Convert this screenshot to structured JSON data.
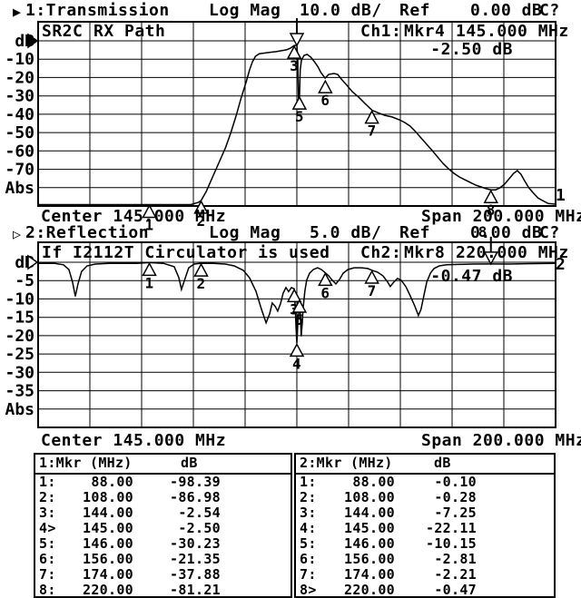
{
  "colors": {
    "fg": "#000000",
    "bg": "#ffffff"
  },
  "header1": {
    "prefix": "▶",
    "title": "1:Transmission",
    "mag_label": "Log Mag",
    "scale": "10.0 dB/",
    "ref_label": "Ref",
    "ref_value": "0.00 dB",
    "cal": "C?"
  },
  "header2": {
    "prefix": "▷",
    "title": "2:Reflection",
    "mag_label": "Log Mag",
    "scale": "5.0 dB/",
    "ref_label": "Ref",
    "ref_value": "0.00 dB",
    "cal": "C?"
  },
  "chart1_texts": {
    "note_left": "SR2C",
    "note_right": "RX Path",
    "ch": "Ch1:",
    "mkr": "Mkr4",
    "mkr_freq": "145.000 MHz",
    "mkr_value": "-2.50 dB",
    "footer_center": "Center 145.000 MHz",
    "footer_span": "Span 200.000 MHz",
    "trace_no": "1"
  },
  "chart2_texts": {
    "note": "If I2112T Circulator is used",
    "ch": "Ch2:",
    "mkr": "Mkr8",
    "mkr_freq": "220.000 MHz",
    "mkr_value": "-0.47 dB",
    "footer_center": "Center 145.000 MHz",
    "footer_span": "Span 200.000 MHz",
    "trace_no": "2"
  },
  "chart_data": [
    {
      "type": "line",
      "name": "Transmission",
      "channel": "Ch1",
      "note": "SR2C RX Path",
      "x_unit": "MHz",
      "center_mhz": 145,
      "span_mhz": 200,
      "x_start_mhz": 45,
      "x_stop_mhz": 245,
      "scale_db_per_div": 10,
      "ref_db": 0,
      "ylim": [
        -90,
        0
      ],
      "y_ticks": [
        "dB",
        "-10",
        "-20",
        "-30",
        "-40",
        "-50",
        "-60",
        "-70",
        "Abs"
      ],
      "active_marker": 4,
      "show_active_label": false,
      "ref_marker_filled": true,
      "markers": [
        {
          "n": 1,
          "mhz": 88,
          "db": -98.39
        },
        {
          "n": 2,
          "mhz": 108,
          "db": -86.98
        },
        {
          "n": 3,
          "mhz": 144,
          "db": -2.54
        },
        {
          "n": 4,
          "mhz": 145,
          "db": -2.5
        },
        {
          "n": 5,
          "mhz": 146,
          "db": -30.23
        },
        {
          "n": 6,
          "mhz": 156,
          "db": -21.35
        },
        {
          "n": 7,
          "mhz": 174,
          "db": -37.88
        },
        {
          "n": 8,
          "mhz": 220,
          "db": -81.21
        }
      ],
      "trace": [
        [
          45,
          -89.5
        ],
        [
          100,
          -89.5
        ],
        [
          104,
          -89.5
        ],
        [
          107,
          -88
        ],
        [
          108,
          -86.98
        ],
        [
          110,
          -82
        ],
        [
          112.5,
          -74
        ],
        [
          115,
          -66
        ],
        [
          117.5,
          -58
        ],
        [
          119.5,
          -50
        ],
        [
          121.5,
          -41
        ],
        [
          123.5,
          -31
        ],
        [
          125.5,
          -22
        ],
        [
          126.7,
          -16
        ],
        [
          127.8,
          -11.5
        ],
        [
          129,
          -8.4
        ],
        [
          130.5,
          -7
        ],
        [
          134,
          -6.4
        ],
        [
          137,
          -5.9
        ],
        [
          141,
          -4.9
        ],
        [
          142.5,
          -4
        ],
        [
          144,
          -2.54
        ],
        [
          145,
          -2.5
        ],
        [
          145.3,
          -8.4
        ],
        [
          145.5,
          -21
        ],
        [
          145.7,
          -37.6
        ],
        [
          146,
          -30.23
        ],
        [
          146.3,
          -15.8
        ],
        [
          146.8,
          -10.4
        ],
        [
          147.8,
          -7.9
        ],
        [
          149,
          -7.4
        ],
        [
          150.4,
          -8.9
        ],
        [
          151.8,
          -11.4
        ],
        [
          153.2,
          -14.3
        ],
        [
          154.3,
          -17.3
        ],
        [
          155.9,
          -20.3
        ],
        [
          157.3,
          -18.3
        ],
        [
          159.4,
          -17.8
        ],
        [
          160.8,
          -18.3
        ],
        [
          162.2,
          -20.8
        ],
        [
          164.3,
          -24.2
        ],
        [
          166.4,
          -27.7
        ],
        [
          168.9,
          -30.7
        ],
        [
          171.3,
          -34.1
        ],
        [
          174.1,
          -37.88
        ],
        [
          176.2,
          -39.1
        ],
        [
          179,
          -40.6
        ],
        [
          181.8,
          -41.5
        ],
        [
          184.6,
          -43
        ],
        [
          186.7,
          -44.5
        ],
        [
          188.8,
          -46.5
        ],
        [
          190.9,
          -49.5
        ],
        [
          193,
          -52.9
        ],
        [
          195.2,
          -56.4
        ],
        [
          197.3,
          -59.8
        ],
        [
          199.4,
          -63.3
        ],
        [
          201.5,
          -66.8
        ],
        [
          203.6,
          -69.7
        ],
        [
          205.7,
          -72.2
        ],
        [
          207.8,
          -74.2
        ],
        [
          209.9,
          -75.7
        ],
        [
          212,
          -77.2
        ],
        [
          214.1,
          -78.6
        ],
        [
          216.2,
          -79.6
        ],
        [
          218.3,
          -80.6
        ],
        [
          220,
          -81.21
        ],
        [
          221.8,
          -81.2
        ],
        [
          223.5,
          -80.1
        ],
        [
          225.3,
          -78.1
        ],
        [
          227,
          -75.2
        ],
        [
          228.8,
          -72.2
        ],
        [
          230.2,
          -70.7
        ],
        [
          231.6,
          -72.7
        ],
        [
          233,
          -76.2
        ],
        [
          234.7,
          -80.1
        ],
        [
          236.5,
          -83.1
        ],
        [
          238.2,
          -85.6
        ],
        [
          240,
          -87.1
        ],
        [
          242.1,
          -88.6
        ],
        [
          245,
          -89
        ]
      ]
    },
    {
      "type": "line",
      "name": "Reflection",
      "channel": "Ch2",
      "note": "If I2112T Circulator is used",
      "x_unit": "MHz",
      "center_mhz": 145,
      "span_mhz": 200,
      "x_start_mhz": 45,
      "x_stop_mhz": 245,
      "scale_db_per_div": 5,
      "ref_db": 0,
      "ylim": [
        -45,
        0
      ],
      "y_ticks": [
        "dB",
        "-5",
        "-10",
        "-15",
        "-20",
        "-25",
        "-30",
        "-35",
        "Abs"
      ],
      "active_marker": 8,
      "show_active_label": true,
      "ref_marker_filled": false,
      "markers": [
        {
          "n": 1,
          "mhz": 88,
          "db": -0.1
        },
        {
          "n": 2,
          "mhz": 108,
          "db": -0.28
        },
        {
          "n": 3,
          "mhz": 144,
          "db": -7.25
        },
        {
          "n": 4,
          "mhz": 145,
          "db": -22.11
        },
        {
          "n": 5,
          "mhz": 146,
          "db": -10.15
        },
        {
          "n": 6,
          "mhz": 156,
          "db": -2.81
        },
        {
          "n": 7,
          "mhz": 174,
          "db": -2.21
        },
        {
          "n": 8,
          "mhz": 220,
          "db": -0.47
        }
      ],
      "trace": [
        [
          45,
          -0.3
        ],
        [
          51.4,
          -0.3
        ],
        [
          54.8,
          -0.7
        ],
        [
          56.9,
          -2
        ],
        [
          58.3,
          -5.4
        ],
        [
          59.4,
          -9.3
        ],
        [
          60.4,
          -5.9
        ],
        [
          61.8,
          -2.5
        ],
        [
          63.9,
          -1
        ],
        [
          67.1,
          -0.5
        ],
        [
          72.4,
          -0.3
        ],
        [
          82.9,
          -0.3
        ],
        [
          88,
          -0.1
        ],
        [
          93.4,
          -0.3
        ],
        [
          97.6,
          -1.2
        ],
        [
          99.4,
          -4.2
        ],
        [
          100.4,
          -7.4
        ],
        [
          101.8,
          -4.4
        ],
        [
          103.2,
          -1.5
        ],
        [
          105.3,
          -0.5
        ],
        [
          108,
          -0.28
        ],
        [
          112.7,
          -0.3
        ],
        [
          117.3,
          -0.5
        ],
        [
          120.8,
          -1
        ],
        [
          124.3,
          -2.2
        ],
        [
          126.7,
          -4.2
        ],
        [
          129.2,
          -7.9
        ],
        [
          131.3,
          -12.8
        ],
        [
          133.1,
          -16.5
        ],
        [
          134.5,
          -14
        ],
        [
          135.5,
          -11.1
        ],
        [
          136.6,
          -12
        ],
        [
          137.6,
          -13.3
        ],
        [
          138.7,
          -11.3
        ],
        [
          139.7,
          -8.4
        ],
        [
          140.8,
          -6.9
        ],
        [
          141.8,
          -8
        ],
        [
          142.9,
          -6.9
        ],
        [
          144,
          -7.25
        ],
        [
          144.4,
          -12.8
        ],
        [
          144.7,
          -17.7
        ],
        [
          145,
          -22.11
        ],
        [
          145.4,
          -16.5
        ],
        [
          145.7,
          -14
        ],
        [
          146,
          -10.15
        ],
        [
          146.4,
          -15.2
        ],
        [
          146.7,
          -20.2
        ],
        [
          147.1,
          -16.5
        ],
        [
          147.4,
          -12.8
        ],
        [
          148.1,
          -7.9
        ],
        [
          148.8,
          -4.9
        ],
        [
          149.9,
          -3
        ],
        [
          151.3,
          -2
        ],
        [
          153,
          -1.5
        ],
        [
          154.5,
          -2
        ],
        [
          155.9,
          -2.81
        ],
        [
          157.3,
          -3.7
        ],
        [
          158.7,
          -4.9
        ],
        [
          160.1,
          -5.9
        ],
        [
          161.5,
          -4.7
        ],
        [
          162.9,
          -3
        ],
        [
          164.7,
          -2
        ],
        [
          167.1,
          -1.5
        ],
        [
          169.9,
          -1.5
        ],
        [
          172.4,
          -1.7
        ],
        [
          174.1,
          -2.21
        ],
        [
          176.2,
          -2.7
        ],
        [
          178.3,
          -3.7
        ],
        [
          180.1,
          -5.4
        ],
        [
          181.1,
          -6.6
        ],
        [
          182.5,
          -5.4
        ],
        [
          183.9,
          -4.4
        ],
        [
          185.3,
          -4.9
        ],
        [
          187.1,
          -6.6
        ],
        [
          188.8,
          -9.1
        ],
        [
          190.6,
          -12
        ],
        [
          192,
          -14.5
        ],
        [
          193,
          -12.8
        ],
        [
          194.1,
          -9.1
        ],
        [
          195.2,
          -5.4
        ],
        [
          196.6,
          -3
        ],
        [
          198,
          -1.7
        ],
        [
          200.1,
          -1
        ],
        [
          202.9,
          -0.7
        ],
        [
          207.5,
          -0.6
        ],
        [
          212.8,
          -0.5
        ],
        [
          220,
          -0.47
        ],
        [
          226.7,
          -0.5
        ],
        [
          233.7,
          -0.4
        ],
        [
          240.7,
          -0.35
        ],
        [
          245,
          -0.3
        ]
      ]
    }
  ],
  "marker_tables": [
    {
      "label": "1:Mkr (MHz)",
      "col_db": "dB",
      "rows": [
        [
          "1:",
          "88.00",
          "-98.39"
        ],
        [
          "2:",
          "108.00",
          "-86.98"
        ],
        [
          "3:",
          "144.00",
          "-2.54"
        ],
        [
          "4>",
          "145.00",
          "-2.50"
        ],
        [
          "5:",
          "146.00",
          "-30.23"
        ],
        [
          "6:",
          "156.00",
          "-21.35"
        ],
        [
          "7:",
          "174.00",
          "-37.88"
        ],
        [
          "8:",
          "220.00",
          "-81.21"
        ]
      ]
    },
    {
      "label": "2:Mkr (MHz)",
      "col_db": "dB",
      "rows": [
        [
          "1:",
          "88.00",
          "-0.10"
        ],
        [
          "2:",
          "108.00",
          "-0.28"
        ],
        [
          "3:",
          "144.00",
          "-7.25"
        ],
        [
          "4:",
          "145.00",
          "-22.11"
        ],
        [
          "5:",
          "146.00",
          "-10.15"
        ],
        [
          "6:",
          "156.00",
          "-2.81"
        ],
        [
          "7:",
          "174.00",
          "-2.21"
        ],
        [
          "8>",
          "220.00",
          "-0.47"
        ]
      ]
    }
  ]
}
